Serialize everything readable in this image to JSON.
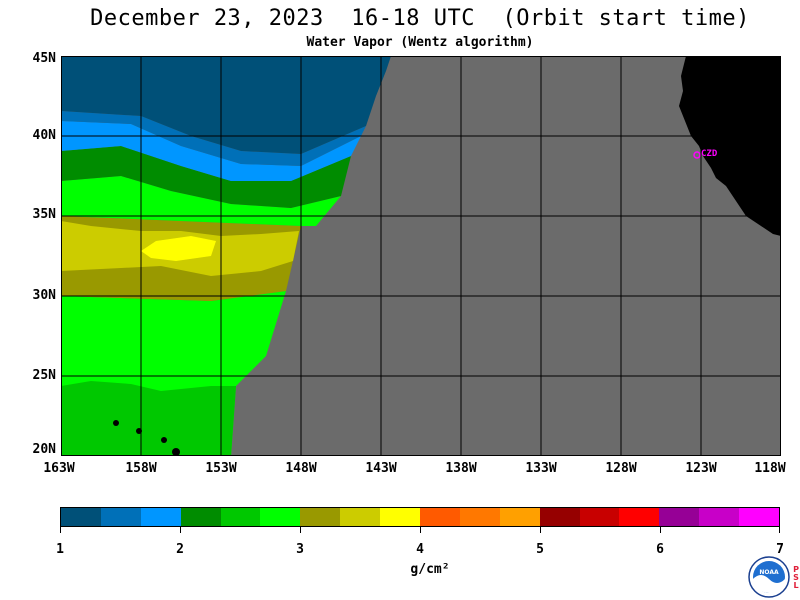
{
  "title": "December 23, 2023  16-18 UTC  (Orbit start time)",
  "subtitle": "Water Vapor (Wentz algorithm)",
  "map": {
    "lat_labels": [
      "45N",
      "40N",
      "35N",
      "30N",
      "25N",
      "20N"
    ],
    "lon_labels": [
      "163W",
      "158W",
      "153W",
      "148W",
      "143W",
      "138W",
      "133W",
      "128W",
      "123W",
      "118W"
    ],
    "station_label": "CZD",
    "colors": {
      "no_data": "#6b6b6b",
      "land": "#000000",
      "grid": "#000000",
      "station": "#ff00ff"
    }
  },
  "colorbar": {
    "labels": [
      "1",
      "2",
      "3",
      "4",
      "5",
      "6",
      "7"
    ],
    "unit": "g/cm²",
    "colors": [
      "#005078",
      "#0070b8",
      "#0096ff",
      "#008c00",
      "#00c800",
      "#00ff00",
      "#999900",
      "#cccc00",
      "#ffff00",
      "#ff5a00",
      "#ff7800",
      "#ffa000",
      "#960000",
      "#c80000",
      "#ff0000",
      "#960096",
      "#c800c8",
      "#ff00ff"
    ]
  },
  "logo": {
    "text": "NOAA",
    "side_text": [
      "P",
      "S",
      "L"
    ]
  }
}
